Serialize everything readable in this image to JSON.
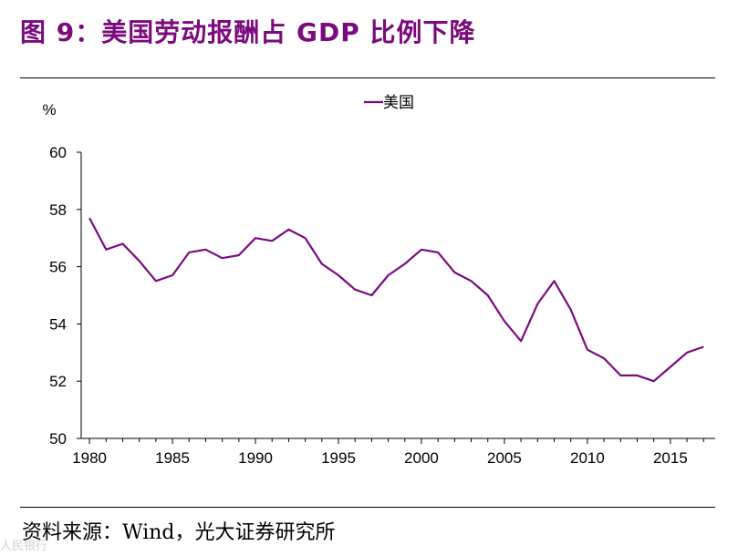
{
  "figure": {
    "title": "图 9：美国劳动报酬占 GDP 比例下降",
    "source": "资料来源：Wind，光大证券研究所",
    "watermark": "人民银行"
  },
  "colors": {
    "title": "#7b0a7e",
    "series": "#7b0a7e",
    "axis": "#000000"
  },
  "chart_data": {
    "type": "line",
    "title": "",
    "ylabel": "%",
    "xlabel": "",
    "ylim": [
      50,
      60
    ],
    "xlim": [
      1979.5,
      2017.7
    ],
    "yticks": [
      50,
      52,
      54,
      56,
      58,
      60
    ],
    "xticks": [
      1980,
      1985,
      1990,
      1995,
      2000,
      2005,
      2010,
      2015
    ],
    "grid": false,
    "legend_position": "top-center",
    "series": [
      {
        "name": "美国",
        "x": [
          1980,
          1981,
          1982,
          1983,
          1984,
          1985,
          1986,
          1987,
          1988,
          1989,
          1990,
          1991,
          1992,
          1993,
          1994,
          1995,
          1996,
          1997,
          1998,
          1999,
          2000,
          2001,
          2002,
          2003,
          2004,
          2005,
          2006,
          2007,
          2008,
          2009,
          2010,
          2011,
          2012,
          2013,
          2014,
          2015,
          2016,
          2017
        ],
        "values": [
          57.7,
          56.6,
          56.8,
          56.2,
          55.5,
          55.7,
          56.5,
          56.6,
          56.3,
          56.4,
          57.0,
          56.9,
          57.3,
          57.0,
          56.1,
          55.7,
          55.2,
          55.0,
          55.7,
          56.1,
          56.6,
          56.5,
          55.8,
          55.5,
          55.0,
          54.1,
          53.4,
          54.7,
          55.5,
          54.5,
          53.1,
          52.8,
          52.2,
          52.2,
          52.0,
          52.5,
          53.0,
          53.2
        ]
      }
    ]
  }
}
